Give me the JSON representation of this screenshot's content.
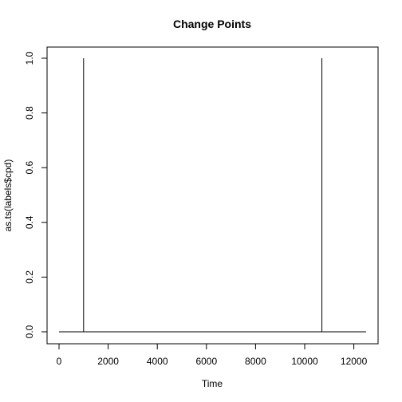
{
  "chart_data": {
    "type": "line",
    "title": "Change Points",
    "xlabel": "Time",
    "ylabel": "as.ts(labels$cpd)",
    "xlim": [
      0,
      12500
    ],
    "ylim": [
      0,
      1
    ],
    "xticks": [
      0,
      2000,
      4000,
      6000,
      8000,
      10000,
      12000
    ],
    "yticks": [
      0,
      0.2,
      0.4,
      0.6,
      0.8,
      1.0
    ],
    "xtick_labels": [
      "0",
      "2000",
      "4000",
      "6000",
      "8000",
      "10000",
      "12000"
    ],
    "ytick_labels": [
      "0.0",
      "0.2",
      "0.4",
      "0.6",
      "0.8",
      "1.0"
    ],
    "grid": false,
    "series": [
      {
        "x": [
          0,
          1000,
          1000,
          1000,
          10700,
          10700,
          10700,
          12500
        ],
        "y": [
          0,
          0,
          1,
          0,
          0,
          1,
          0,
          0
        ]
      }
    ]
  }
}
